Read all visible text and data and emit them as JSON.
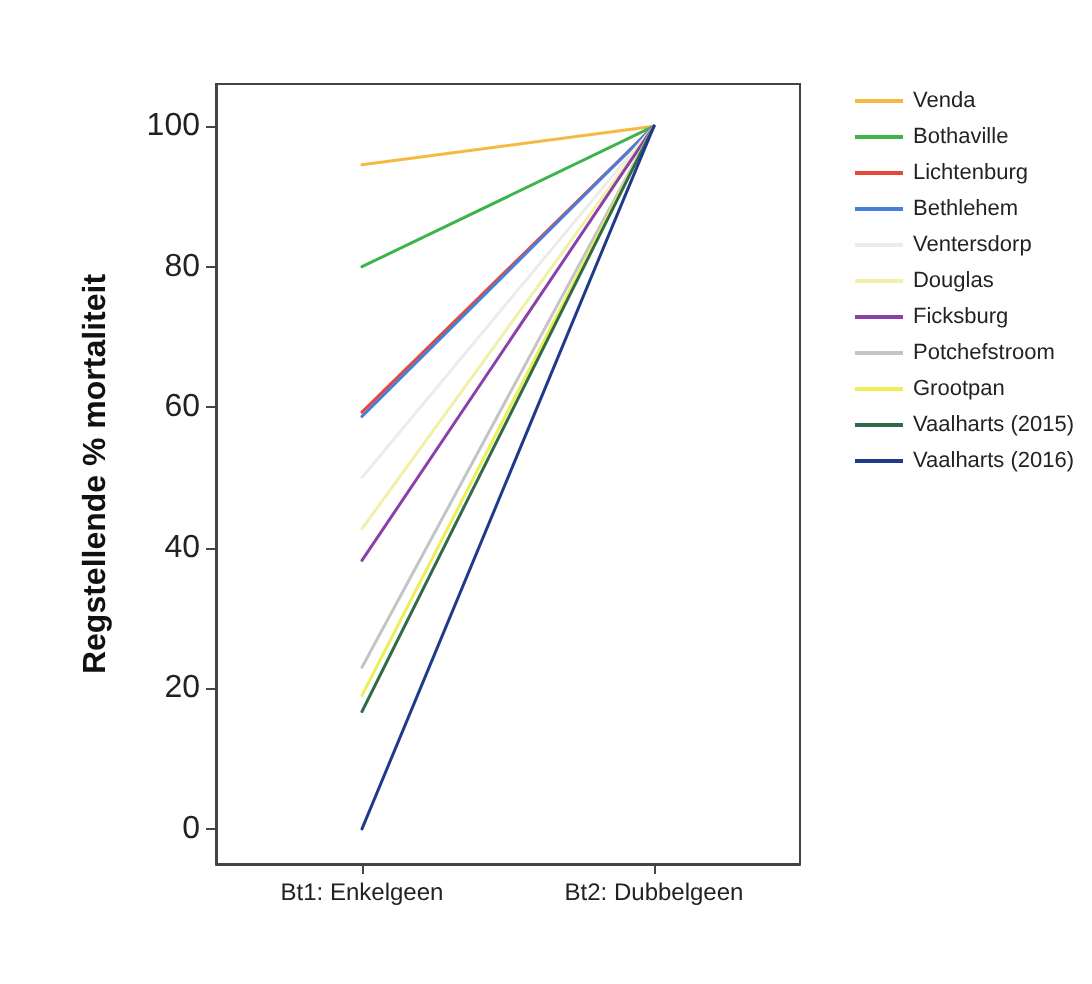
{
  "chart_data": {
    "type": "line",
    "ylabel": "Regstellende % mortaliteit",
    "categories": [
      "Bt1: Enkelgeen",
      "Bt2: Dubbelgeen"
    ],
    "ylim": [
      -5,
      106
    ],
    "yticks": [
      0,
      20,
      40,
      60,
      80,
      100
    ],
    "grid": false,
    "legend": "right",
    "marker": "none",
    "line_style": "solid",
    "series": [
      {
        "name": "Venda",
        "color": "#f5b942",
        "values": [
          94.5,
          100
        ]
      },
      {
        "name": "Bothaville",
        "color": "#3cb44b",
        "values": [
          80,
          100
        ]
      },
      {
        "name": "Lichtenburg",
        "color": "#e8453c",
        "values": [
          59.3,
          100
        ]
      },
      {
        "name": "Bethlehem",
        "color": "#4a7fd9",
        "values": [
          58.7,
          100
        ]
      },
      {
        "name": "Ventersdorp",
        "color": "#ececec",
        "values": [
          50,
          100
        ]
      },
      {
        "name": "Douglas",
        "color": "#f2efa6",
        "values": [
          42.7,
          100
        ]
      },
      {
        "name": "Ficksburg",
        "color": "#8b3fa8",
        "values": [
          38.2,
          100
        ]
      },
      {
        "name": "Potchefstroom",
        "color": "#c4c4c4",
        "values": [
          23,
          100
        ]
      },
      {
        "name": "Grootpan",
        "color": "#eeee55",
        "values": [
          19,
          100
        ]
      },
      {
        "name": "Vaalharts (2015)",
        "color": "#2e6b4a",
        "values": [
          16.7,
          100
        ]
      },
      {
        "name": "Vaalharts (2016)",
        "color": "#1f3a8a",
        "values": [
          0,
          100
        ]
      }
    ]
  }
}
